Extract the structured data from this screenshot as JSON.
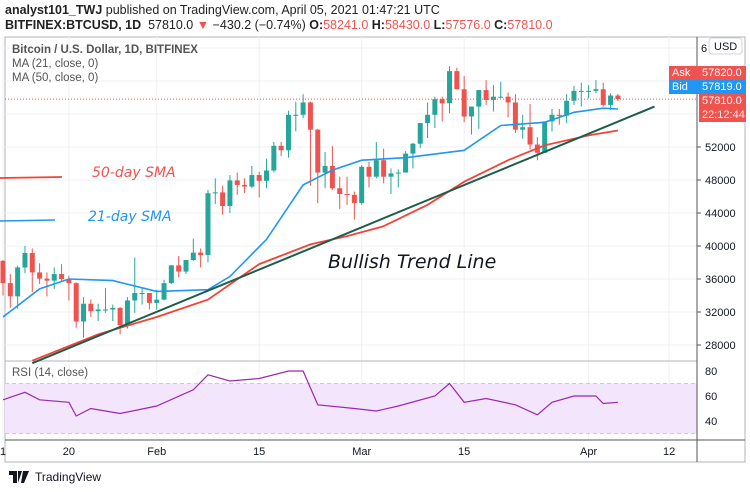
{
  "header": {
    "author": "analyst101_TWJ",
    "published": "published on TradingView.com, April 05, 2021 01:47:21 UTC",
    "symbol": "BITFINEX:BTCUSD, 1D",
    "last": "57810.0",
    "change": "−430.2 (−0.74%)",
    "o_label": "O:",
    "o": "58241.0",
    "h_label": "H:",
    "h": "58430.0",
    "l_label": "L:",
    "l": "57576.0",
    "c_label": "C:",
    "c": "57810.0"
  },
  "legend": {
    "title": "Bitcoin / U.S. Dollar, 1D, BITFINEX",
    "ma21": "MA (21, close, 0)",
    "ma50": "MA (50, close, 0)",
    "rsi": "RSI (14, close)"
  },
  "annotations": {
    "sma50": "50-day SMA",
    "sma21": "21-day SMA",
    "trend": "Bullish Trend Line"
  },
  "price_axis": {
    "currency": "USD",
    "top_partial": "6",
    "ask_label": "Ask",
    "ask": "57820.0",
    "bid_label": "Bid",
    "bid": "57819.0",
    "last": "57810.0",
    "countdown": "22:12:44"
  },
  "footer": {
    "brand": "TradingView"
  },
  "colors": {
    "up": "#26a69a",
    "down": "#ef5350",
    "ma21": "#2196f3",
    "ma50": "#f44336",
    "trend": "#1b5e4a",
    "rsi": "#9c27b0",
    "rsi_band": "#f3e5fc",
    "ask": "#ef5350",
    "bid": "#2196f3"
  },
  "chart_data": {
    "type": "candlestick",
    "ylim": [
      24000,
      65000
    ],
    "yticks": [
      28000,
      32000,
      36000,
      40000,
      44000,
      48000,
      52000
    ],
    "xticks": [
      [
        "2021-01-11",
        "1"
      ],
      [
        "2021-01-20",
        "20"
      ],
      [
        "2021-02-01",
        "Feb"
      ],
      [
        "2021-02-15",
        "15"
      ],
      [
        "2021-03-01",
        "Mar"
      ],
      [
        "2021-03-15",
        "15"
      ],
      [
        "2021-04-01",
        "Apr"
      ],
      [
        "2021-04-12",
        "12"
      ]
    ],
    "candles": [
      [
        "2021-01-11",
        38200,
        38300,
        34000,
        35500
      ],
      [
        "2021-01-12",
        35500,
        36600,
        32500,
        33900
      ],
      [
        "2021-01-13",
        33900,
        37600,
        32400,
        37400
      ],
      [
        "2021-01-14",
        37400,
        40000,
        36700,
        39150
      ],
      [
        "2021-01-15",
        39150,
        39700,
        34400,
        36800
      ],
      [
        "2021-01-16",
        36800,
        37900,
        35400,
        36050
      ],
      [
        "2021-01-17",
        36050,
        36800,
        33900,
        35800
      ],
      [
        "2021-01-18",
        35800,
        37400,
        34800,
        36600
      ],
      [
        "2021-01-19",
        36600,
        37800,
        35800,
        36000
      ],
      [
        "2021-01-20",
        36000,
        36400,
        33400,
        35500
      ],
      [
        "2021-01-21",
        35500,
        35600,
        30100,
        30850
      ],
      [
        "2021-01-22",
        30850,
        33800,
        28900,
        33000
      ],
      [
        "2021-01-23",
        33000,
        33500,
        31400,
        32100
      ],
      [
        "2021-01-24",
        32100,
        33000,
        30900,
        32300
      ],
      [
        "2021-01-25",
        32300,
        34900,
        31900,
        32300
      ],
      [
        "2021-01-26",
        32300,
        32900,
        30900,
        32500
      ],
      [
        "2021-01-27",
        32500,
        32600,
        29300,
        30400
      ],
      [
        "2021-01-28",
        30400,
        33800,
        30000,
        33400
      ],
      [
        "2021-01-29",
        33400,
        38600,
        31900,
        34300
      ],
      [
        "2021-01-30",
        34300,
        34900,
        32900,
        34300
      ],
      [
        "2021-01-31",
        34300,
        34300,
        32300,
        33100
      ],
      [
        "2021-02-01",
        33100,
        34700,
        32300,
        33500
      ],
      [
        "2021-02-02",
        33500,
        35900,
        33400,
        35500
      ],
      [
        "2021-02-03",
        35500,
        37700,
        35400,
        37650
      ],
      [
        "2021-02-04",
        37650,
        38800,
        36200,
        36900
      ],
      [
        "2021-02-05",
        36900,
        38300,
        36600,
        38300
      ],
      [
        "2021-02-06",
        38300,
        40900,
        38200,
        39200
      ],
      [
        "2021-02-07",
        39200,
        39700,
        37400,
        38900
      ],
      [
        "2021-02-08",
        38900,
        46800,
        38000,
        46400
      ],
      [
        "2021-02-09",
        46400,
        48200,
        45100,
        46500
      ],
      [
        "2021-02-10",
        46500,
        47300,
        43800,
        44850
      ],
      [
        "2021-02-11",
        44850,
        48600,
        44000,
        47950
      ],
      [
        "2021-02-12",
        47950,
        48900,
        46200,
        47400
      ],
      [
        "2021-02-13",
        47400,
        48200,
        46400,
        47200
      ],
      [
        "2021-02-14",
        47200,
        49700,
        47000,
        48600
      ],
      [
        "2021-02-15",
        48600,
        49000,
        45900,
        47900
      ],
      [
        "2021-02-16",
        47900,
        50600,
        47000,
        49150
      ],
      [
        "2021-02-17",
        49150,
        52600,
        48900,
        52150
      ],
      [
        "2021-02-18",
        52150,
        52600,
        50900,
        51600
      ],
      [
        "2021-02-19",
        51600,
        56400,
        50700,
        55900
      ],
      [
        "2021-02-20",
        55900,
        57500,
        53900,
        55900
      ],
      [
        "2021-02-21",
        55900,
        58400,
        55500,
        57400
      ],
      [
        "2021-02-22",
        57400,
        57500,
        47300,
        54100
      ],
      [
        "2021-02-23",
        54100,
        54200,
        45200,
        48900
      ],
      [
        "2021-02-24",
        48900,
        51400,
        47000,
        49700
      ],
      [
        "2021-02-25",
        49700,
        52100,
        46800,
        47000
      ],
      [
        "2021-02-26",
        47000,
        48400,
        44500,
        46300
      ],
      [
        "2021-02-27",
        46300,
        48400,
        45000,
        46200
      ],
      [
        "2021-02-28",
        46200,
        46600,
        43200,
        45200
      ],
      [
        "2021-03-01",
        45200,
        49800,
        45000,
        49600
      ],
      [
        "2021-03-02",
        49600,
        50200,
        47100,
        48400
      ],
      [
        "2021-03-03",
        48400,
        52600,
        48200,
        50400
      ],
      [
        "2021-03-04",
        50400,
        51800,
        47600,
        48400
      ],
      [
        "2021-03-05",
        48400,
        49400,
        46300,
        48800
      ],
      [
        "2021-03-06",
        48800,
        49300,
        47100,
        48900
      ],
      [
        "2021-03-07",
        48900,
        51500,
        48900,
        51200
      ],
      [
        "2021-03-08",
        51200,
        52500,
        49400,
        52400
      ],
      [
        "2021-03-09",
        52400,
        54900,
        51900,
        54900
      ],
      [
        "2021-03-10",
        54900,
        57400,
        53100,
        55900
      ],
      [
        "2021-03-11",
        55900,
        58100,
        54300,
        57800
      ],
      [
        "2021-03-12",
        57800,
        58100,
        55100,
        57300
      ],
      [
        "2021-03-13",
        57300,
        61800,
        56100,
        61200
      ],
      [
        "2021-03-14",
        61200,
        61600,
        59000,
        59000
      ],
      [
        "2021-03-15",
        59000,
        60600,
        55000,
        55700
      ],
      [
        "2021-03-16",
        55700,
        56900,
        53500,
        56900
      ],
      [
        "2021-03-17",
        56900,
        58900,
        54200,
        58900
      ],
      [
        "2021-03-18",
        58900,
        60100,
        57100,
        57700
      ],
      [
        "2021-03-19",
        57700,
        59500,
        56300,
        58100
      ],
      [
        "2021-03-20",
        58100,
        59900,
        57900,
        58100
      ],
      [
        "2021-03-21",
        58100,
        58600,
        55600,
        57400
      ],
      [
        "2021-03-22",
        57400,
        58400,
        53700,
        54100
      ],
      [
        "2021-03-23",
        54100,
        55900,
        53000,
        54400
      ],
      [
        "2021-03-24",
        54400,
        57200,
        51700,
        52300
      ],
      [
        "2021-03-25",
        52300,
        53200,
        50400,
        51300
      ],
      [
        "2021-03-26",
        51300,
        55100,
        51300,
        55100
      ],
      [
        "2021-03-27",
        55100,
        56600,
        53900,
        55900
      ],
      [
        "2021-03-28",
        55900,
        56600,
        54700,
        55800
      ],
      [
        "2021-03-29",
        55800,
        58400,
        54900,
        57600
      ],
      [
        "2021-03-30",
        57600,
        59400,
        57100,
        58800
      ],
      [
        "2021-03-31",
        58800,
        59800,
        56900,
        58800
      ],
      [
        "2021-04-01",
        58800,
        59500,
        57900,
        58800
      ],
      [
        "2021-04-02",
        58800,
        60100,
        58500,
        59000
      ],
      [
        "2021-04-03",
        59000,
        59800,
        56900,
        57100
      ],
      [
        "2021-04-04",
        57100,
        58500,
        56500,
        58240
      ],
      [
        "2021-04-05",
        58241,
        58430,
        57576,
        57810
      ]
    ],
    "ma21": [
      [
        "2021-01-11",
        31400
      ],
      [
        "2021-01-16",
        34800
      ],
      [
        "2021-01-20",
        36000
      ],
      [
        "2021-01-26",
        35800
      ],
      [
        "2021-02-01",
        34500
      ],
      [
        "2021-02-08",
        34700
      ],
      [
        "2021-02-11",
        36300
      ],
      [
        "2021-02-16",
        40800
      ],
      [
        "2021-02-21",
        47400
      ],
      [
        "2021-02-25",
        49200
      ],
      [
        "2021-03-01",
        50400
      ],
      [
        "2021-03-07",
        50700
      ],
      [
        "2021-03-15",
        51600
      ],
      [
        "2021-03-20",
        54600
      ],
      [
        "2021-03-26",
        55000
      ],
      [
        "2021-03-30",
        56200
      ],
      [
        "2021-04-03",
        56700
      ],
      [
        "2021-04-05",
        56600
      ]
    ],
    "ma50": [
      [
        "2021-01-15",
        26100
      ],
      [
        "2021-01-24",
        29300
      ],
      [
        "2021-02-01",
        31400
      ],
      [
        "2021-02-08",
        33500
      ],
      [
        "2021-02-15",
        37800
      ],
      [
        "2021-02-22",
        40200
      ],
      [
        "2021-02-27",
        41200
      ],
      [
        "2021-03-04",
        42400
      ],
      [
        "2021-03-10",
        45000
      ],
      [
        "2021-03-15",
        47800
      ],
      [
        "2021-03-21",
        50400
      ],
      [
        "2021-03-26",
        52200
      ],
      [
        "2021-04-01",
        53400
      ],
      [
        "2021-04-05",
        54000
      ]
    ],
    "trend_line": [
      [
        "2021-01-15",
        25800
      ],
      [
        "2021-04-10",
        56900
      ]
    ],
    "rsi": {
      "yticks": [
        80,
        60,
        40
      ],
      "band": [
        30,
        70
      ],
      "values": [
        [
          "2021-01-11",
          57
        ],
        [
          "2021-01-14",
          63
        ],
        [
          "2021-01-16",
          57
        ],
        [
          "2021-01-20",
          55
        ],
        [
          "2021-01-21",
          44
        ],
        [
          "2021-01-23",
          50
        ],
        [
          "2021-01-27",
          46
        ],
        [
          "2021-02-01",
          52
        ],
        [
          "2021-02-06",
          65
        ],
        [
          "2021-02-08",
          77
        ],
        [
          "2021-02-11",
          72
        ],
        [
          "2021-02-15",
          74
        ],
        [
          "2021-02-19",
          80
        ],
        [
          "2021-02-21",
          80
        ],
        [
          "2021-02-23",
          53
        ],
        [
          "2021-02-28",
          50
        ],
        [
          "2021-03-03",
          48
        ],
        [
          "2021-03-06",
          52
        ],
        [
          "2021-03-11",
          60
        ],
        [
          "2021-03-13",
          70
        ],
        [
          "2021-03-15",
          55
        ],
        [
          "2021-03-18",
          58
        ],
        [
          "2021-03-22",
          53
        ],
        [
          "2021-03-25",
          45
        ],
        [
          "2021-03-27",
          55
        ],
        [
          "2021-03-30",
          60
        ],
        [
          "2021-04-02",
          60
        ],
        [
          "2021-04-03",
          54
        ],
        [
          "2021-04-05",
          55
        ]
      ]
    }
  }
}
